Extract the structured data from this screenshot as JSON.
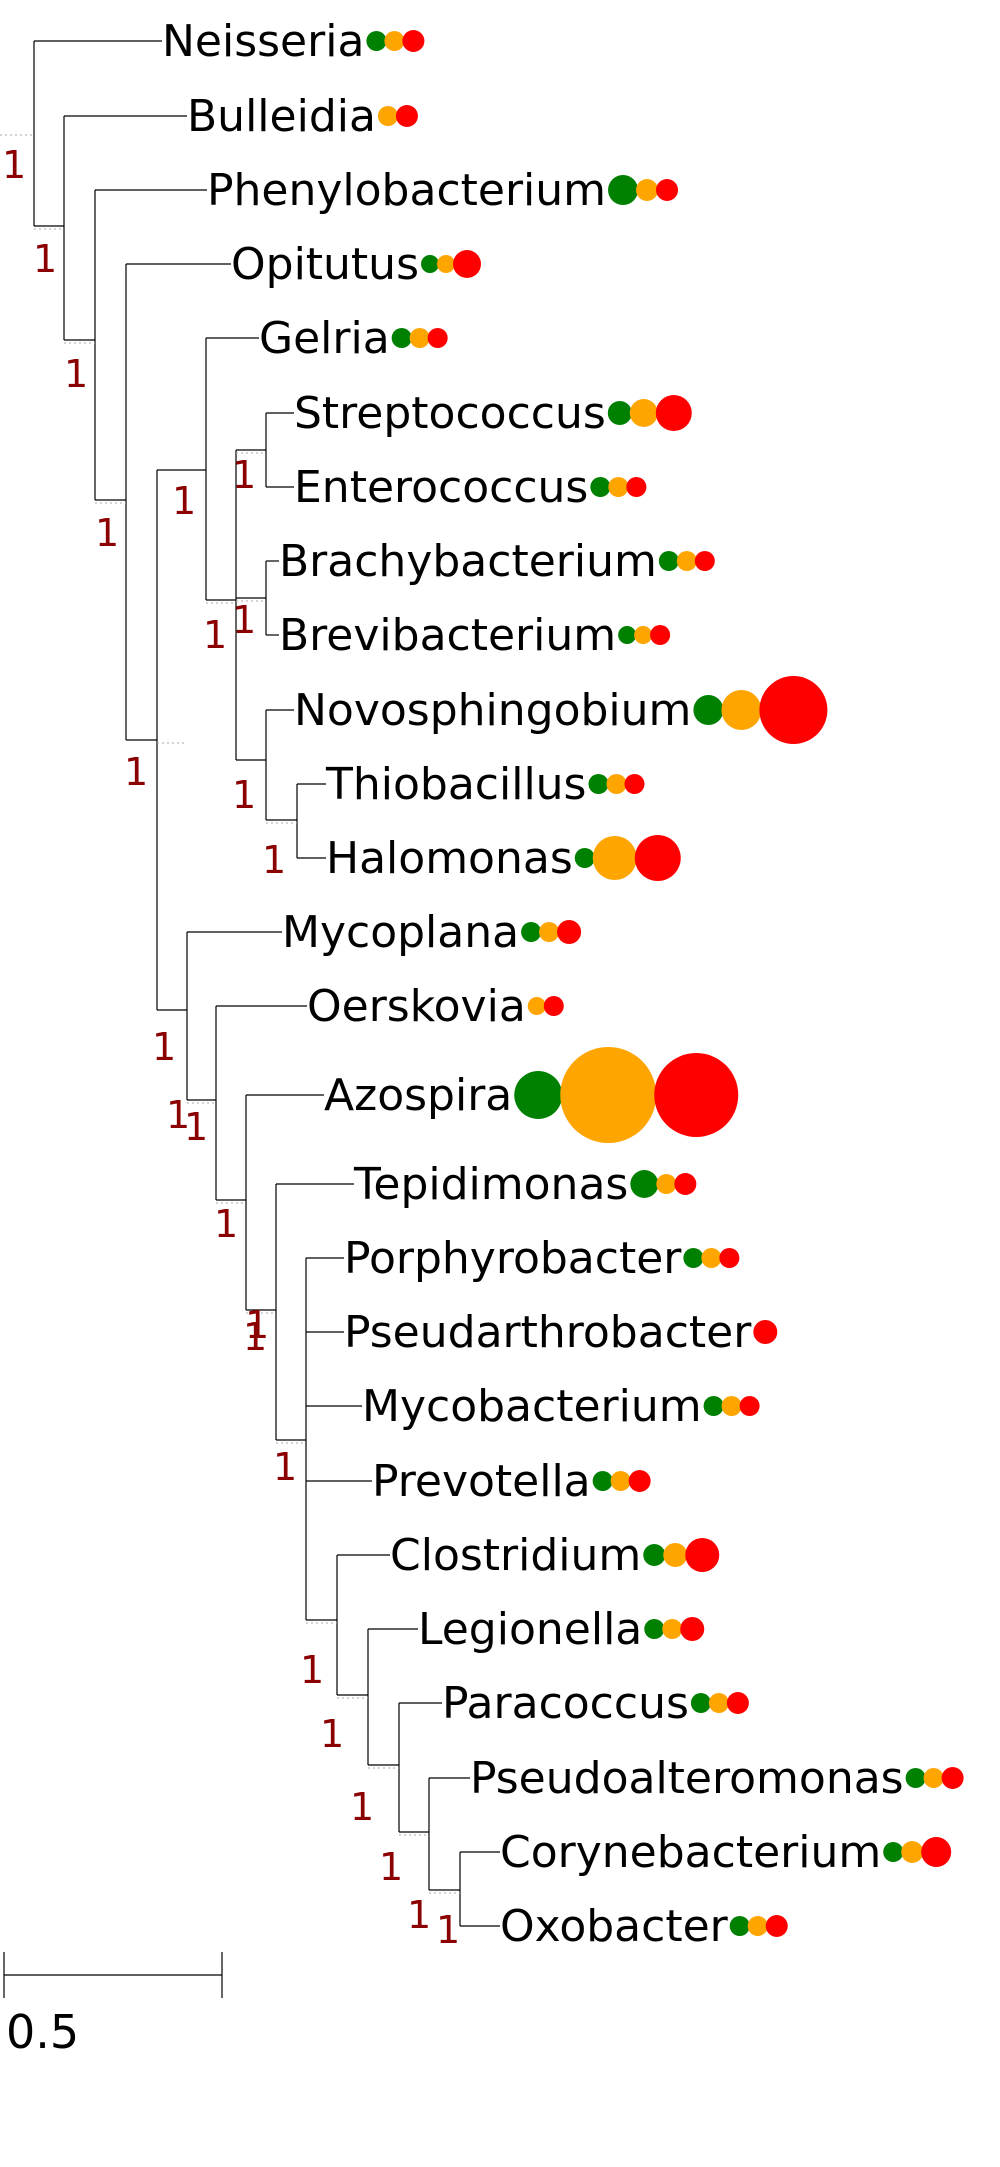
{
  "colors": {
    "green": "#008000",
    "orange": "#ffa500",
    "red": "#ff0000",
    "support": "#8b0000",
    "branch": "#000000"
  },
  "leaves": [
    {
      "name": "Neisseria",
      "g": 10,
      "o": 10,
      "r": 11
    },
    {
      "name": "Bulleidia",
      "g": 0,
      "o": 10,
      "r": 11
    },
    {
      "name": "Phenylobacterium",
      "g": 15,
      "o": 11,
      "r": 11
    },
    {
      "name": "Opitutus",
      "g": 9,
      "o": 9,
      "r": 14
    },
    {
      "name": "Gelria",
      "g": 10,
      "o": 10,
      "r": 10
    },
    {
      "name": "Streptococcus",
      "g": 12,
      "o": 14,
      "r": 18
    },
    {
      "name": "Enterococcus",
      "g": 10,
      "o": 10,
      "r": 10
    },
    {
      "name": "Brachybacterium",
      "g": 10,
      "o": 10,
      "r": 10
    },
    {
      "name": "Brevibacterium",
      "g": 9,
      "o": 9,
      "r": 10
    },
    {
      "name": "Novosphingobium",
      "g": 15,
      "o": 20,
      "r": 34
    },
    {
      "name": "Thiobacillus",
      "g": 10,
      "o": 10,
      "r": 10
    },
    {
      "name": "Halomonas",
      "g": 10,
      "o": 22,
      "r": 23
    },
    {
      "name": "Mycoplana",
      "g": 10,
      "o": 10,
      "r": 12
    },
    {
      "name": "Oerskovia",
      "g": 0,
      "o": 9,
      "r": 10
    },
    {
      "name": "Azospira",
      "g": 24,
      "o": 48,
      "r": 42
    },
    {
      "name": "Tepidimonas",
      "g": 14,
      "o": 10,
      "r": 11
    },
    {
      "name": "Porphyrobacter",
      "g": 10,
      "o": 10,
      "r": 10
    },
    {
      "name": "Pseudarthrobacter",
      "g": 0,
      "o": 0,
      "r": 12
    },
    {
      "name": "Mycobacterium",
      "g": 10,
      "o": 10,
      "r": 10
    },
    {
      "name": "Prevotella",
      "g": 10,
      "o": 10,
      "r": 11
    },
    {
      "name": "Clostridium",
      "g": 11,
      "o": 12,
      "r": 17
    },
    {
      "name": "Legionella",
      "g": 10,
      "o": 10,
      "r": 12
    },
    {
      "name": "Paracoccus",
      "g": 10,
      "o": 10,
      "r": 11
    },
    {
      "name": "Pseudoalteromonas",
      "g": 10,
      "o": 10,
      "r": 11
    },
    {
      "name": "Corynebacterium",
      "g": 10,
      "o": 11,
      "r": 15
    },
    {
      "name": "Oxobacter",
      "g": 10,
      "o": 10,
      "r": 11
    }
  ],
  "support_values": [
    "1",
    "1",
    "1",
    "1",
    "1",
    "1",
    "1",
    "1",
    "1",
    "1",
    "1",
    "1",
    "1",
    "1",
    "1",
    "1",
    "1",
    "1",
    "1",
    "1",
    "1",
    "1",
    "1",
    "1"
  ],
  "scale_bar": {
    "label": "0.5"
  }
}
